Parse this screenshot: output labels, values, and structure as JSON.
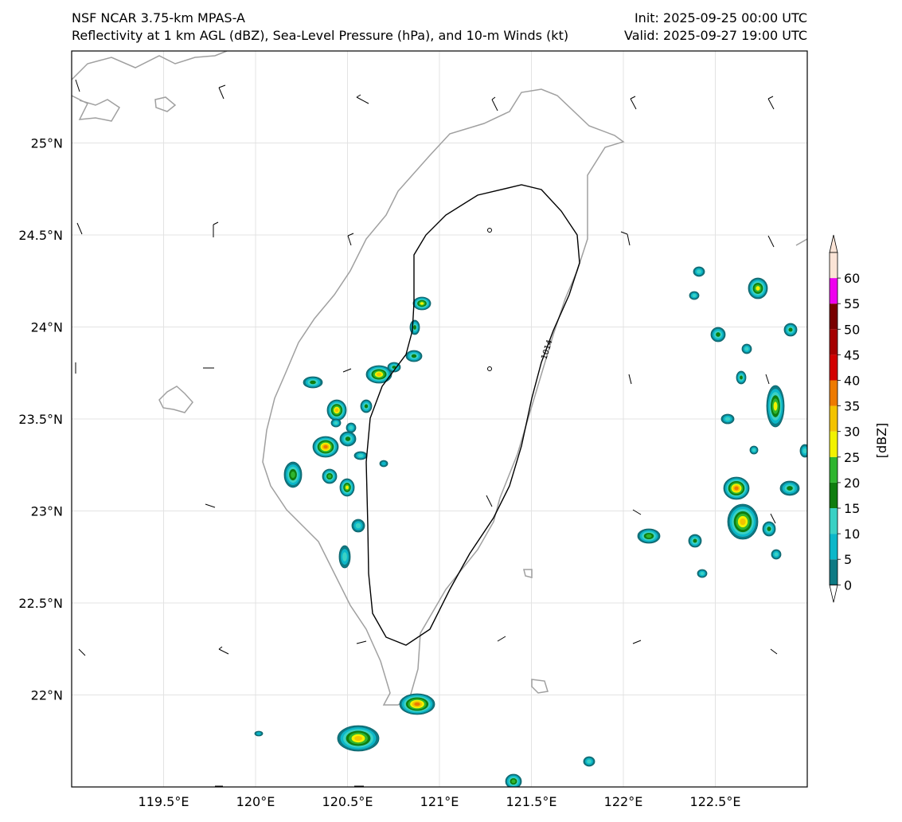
{
  "header": {
    "title": "NSF NCAR 3.75-km MPAS-A",
    "subtitle": "Reflectivity at 1 km AGL (dBZ), Sea-Level Pressure (hPa), and 10-m Winds (kt)",
    "init": "Init: 2025-09-25 00:00 UTC",
    "valid": "Valid: 2025-09-27 19:00 UTC"
  },
  "map": {
    "lon_range": [
      119.0,
      123.0
    ],
    "lat_range": [
      21.5,
      25.5
    ],
    "lon_ticks": [
      "119.5°E",
      "120°E",
      "120.5°E",
      "121°E",
      "121.5°E",
      "122°E",
      "122.5°E"
    ],
    "lat_ticks": [
      "22°N",
      "22.5°N",
      "23°N",
      "23.5°N",
      "24°N",
      "24.5°N",
      "25°N"
    ],
    "gridlines": true,
    "isobar_label": "1014",
    "coastline_color": "#a0a0a0"
  },
  "colorbar": {
    "label": "[dBZ]",
    "ticks": [
      "0",
      "5",
      "10",
      "15",
      "20",
      "25",
      "30",
      "35",
      "40",
      "45",
      "50",
      "55",
      "60"
    ],
    "colors": [
      "#0e7a84",
      "#0cb7c9",
      "#3bd1c4",
      "#0f7d0f",
      "#2fb52f",
      "#f2f200",
      "#f3c300",
      "#ee7a00",
      "#d20000",
      "#a50000",
      "#780000",
      "#ef00ef",
      "#fbe4d6"
    ]
  }
}
